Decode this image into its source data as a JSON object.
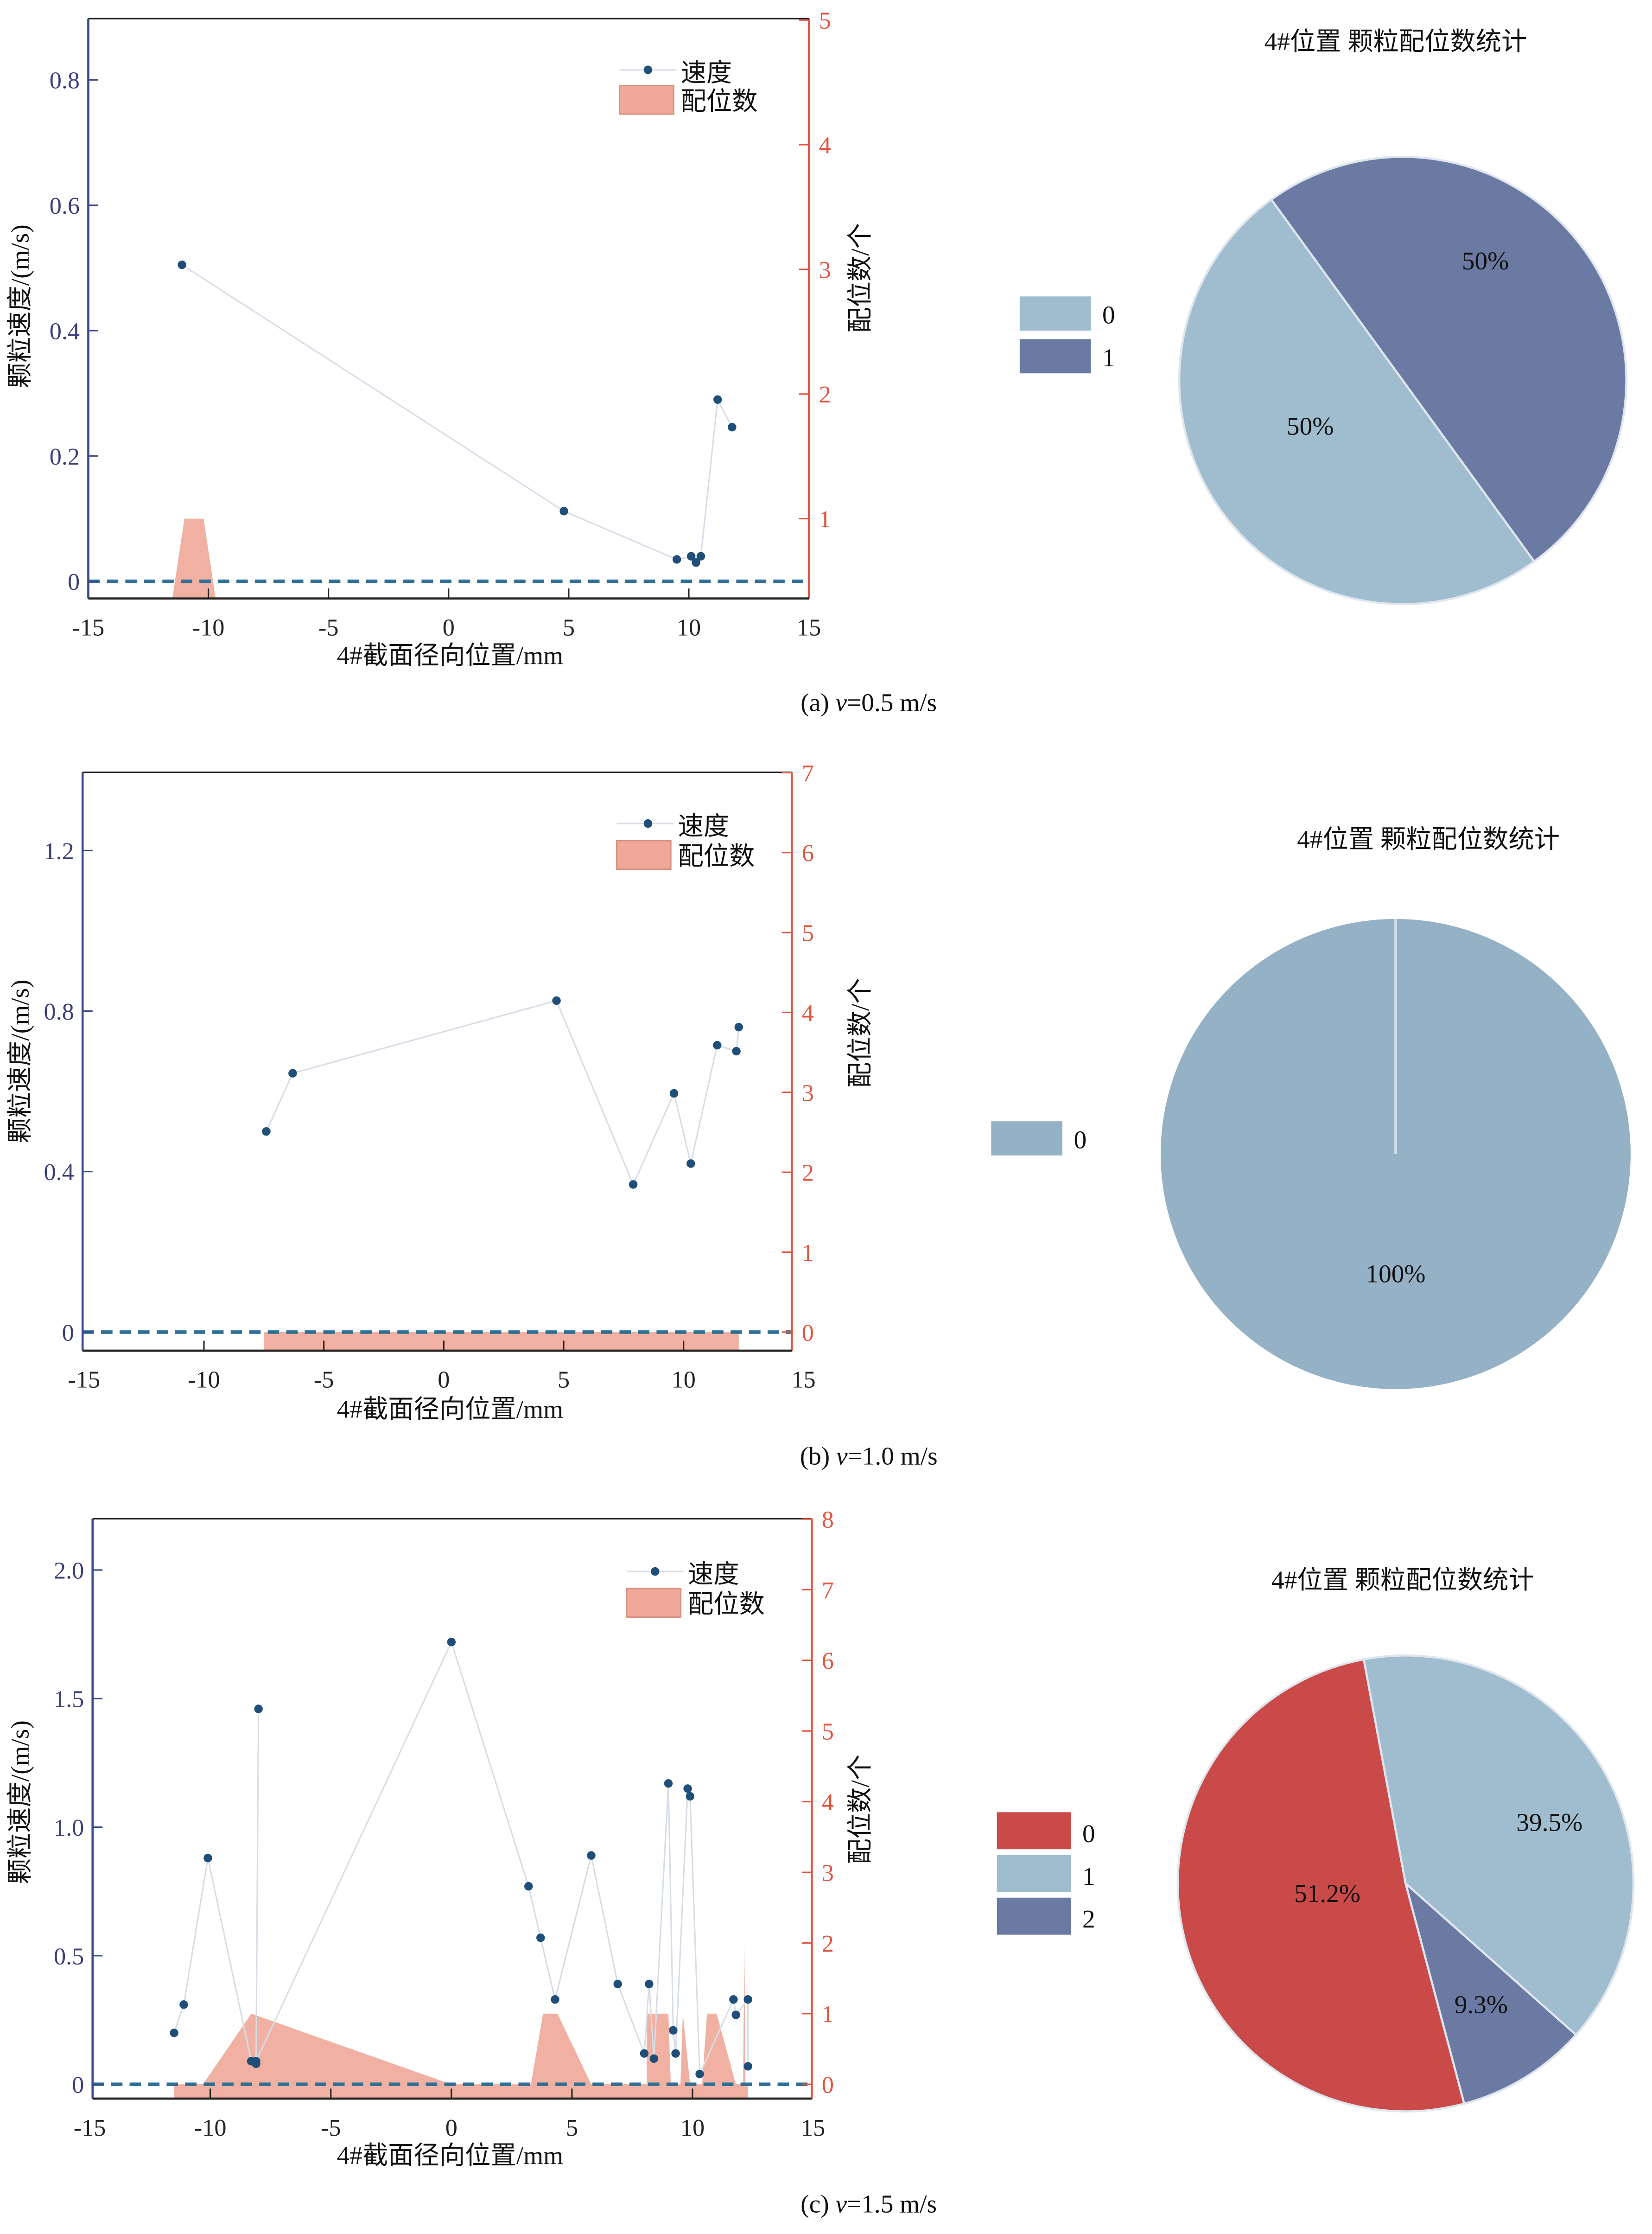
{
  "colors": {
    "left_axis": "#3a4a8a",
    "right_axis": "#e0553f",
    "speed": "#1f4e79",
    "area": "#f0a898",
    "dash": "#2f6f95",
    "pie0_light": "#a0bccf",
    "pie_dark": "#6a7aa3",
    "pie_red": "#c94a48",
    "pie_b": "#94b1c6"
  },
  "chart_data": [
    {
      "type": "line+area",
      "caption": {
        "prefix": "(a) ",
        "var": "v",
        "suffix": "=0.5 m/s"
      },
      "xlabel": "4#截面径向位置/mm",
      "ylabel": "颗粒速度/(m/s)",
      "y2label": "配位数/个",
      "xlim": [
        -15,
        15
      ],
      "xticks": [
        "-15",
        "-10",
        "-5",
        "0",
        "5",
        "10",
        "15"
      ],
      "yticks": [
        "0",
        "0.2",
        "0.4",
        "0.6",
        "0.8"
      ],
      "y2ticks": [
        "1",
        "2",
        "3",
        "4",
        "5"
      ],
      "legend": {
        "speed": "速度",
        "coord": "配位数"
      },
      "speed": [
        [
          -11.1,
          0.505
        ],
        [
          4.8,
          0.112
        ],
        [
          9.5,
          0.035
        ],
        [
          10.1,
          0.04
        ],
        [
          10.3,
          0.03
        ],
        [
          10.5,
          0.04
        ],
        [
          11.2,
          0.29
        ],
        [
          11.8,
          0.246
        ]
      ],
      "coord": [
        [
          -11.5,
          0.35
        ],
        [
          -11.0,
          1
        ],
        [
          -10.2,
          1
        ],
        [
          -9.7,
          0.35
        ]
      ]
    },
    {
      "type": "line+area",
      "caption": {
        "prefix": "(b) ",
        "var": "v",
        "suffix": "=1.0 m/s"
      },
      "xlabel": "4#截面径向位置/mm",
      "ylabel": "颗粒速度/(m/s)",
      "y2label": "配位数/个",
      "xlim": [
        -15,
        15
      ],
      "xticks": [
        "-15",
        "-10",
        "-5",
        "0",
        "5",
        "10",
        "15"
      ],
      "yticks": [
        "0",
        "0.4",
        "0.8",
        "1.2"
      ],
      "y2ticks": [
        "0",
        "1",
        "2",
        "3",
        "4",
        "5",
        "6",
        "7"
      ],
      "legend": {
        "speed": "速度",
        "coord": "配位数"
      },
      "speed": [
        [
          -7.4,
          0.5
        ],
        [
          -6.3,
          0.645
        ],
        [
          4.7,
          0.826
        ],
        [
          7.9,
          0.368
        ],
        [
          9.6,
          0.595
        ],
        [
          10.3,
          0.42
        ],
        [
          11.4,
          0.715
        ],
        [
          12.2,
          0.7
        ],
        [
          12.3,
          0.76
        ]
      ],
      "coord": [
        [
          -7.5,
          0
        ],
        [
          12.3,
          0
        ]
      ]
    },
    {
      "type": "line+area",
      "caption": {
        "prefix": "(c) ",
        "var": "v",
        "suffix": "=1.5 m/s"
      },
      "xlabel": "4#截面径向位置/mm",
      "ylabel": "颗粒速度/(m/s)",
      "y2label": "配位数/个",
      "xlim": [
        -15,
        15
      ],
      "xticks": [
        "-15",
        "-10",
        "-5",
        "0",
        "5",
        "10",
        "15"
      ],
      "yticks": [
        "0",
        "0.5",
        "1.0",
        "1.5",
        "2.0"
      ],
      "y2ticks": [
        "0",
        "1",
        "2",
        "3",
        "4",
        "5",
        "6",
        "7",
        "8"
      ],
      "legend": {
        "speed": "速度",
        "coord": "配位数"
      },
      "speed": [
        [
          -11.5,
          0.2
        ],
        [
          -11.1,
          0.31
        ],
        [
          -10.1,
          0.88
        ],
        [
          -8.3,
          0.09
        ],
        [
          -8.1,
          0.08
        ],
        [
          -8.0,
          1.46
        ],
        [
          -8.1,
          0.09
        ],
        [
          0,
          1.72
        ],
        [
          3.2,
          0.77
        ],
        [
          3.7,
          0.57
        ],
        [
          4.3,
          0.33
        ],
        [
          5.8,
          0.89
        ],
        [
          6.9,
          0.39
        ],
        [
          8.0,
          0.12
        ],
        [
          8.2,
          0.39
        ],
        [
          8.4,
          0.1
        ],
        [
          9.0,
          1.17
        ],
        [
          9.2,
          0.21
        ],
        [
          9.3,
          0.12
        ],
        [
          9.8,
          1.15
        ],
        [
          9.9,
          1.12
        ],
        [
          10.3,
          0.04
        ],
        [
          11.7,
          0.33
        ],
        [
          11.8,
          0.27
        ],
        [
          12.3,
          0.33
        ],
        [
          12.3,
          0.07
        ]
      ],
      "coord": [
        [
          -11.5,
          0
        ],
        [
          -10.3,
          0
        ],
        [
          -8.3,
          1
        ],
        [
          0,
          0
        ],
        [
          3.3,
          0
        ],
        [
          3.8,
          1
        ],
        [
          4.4,
          1
        ],
        [
          5.8,
          0
        ],
        [
          8.1,
          0
        ],
        [
          8.1,
          1
        ],
        [
          9.0,
          1
        ],
        [
          9.1,
          0
        ],
        [
          9.5,
          0
        ],
        [
          9.6,
          1
        ],
        [
          9.9,
          0
        ],
        [
          10.4,
          0
        ],
        [
          10.6,
          1
        ],
        [
          11.0,
          1
        ],
        [
          11.8,
          0
        ],
        [
          12.1,
          0
        ],
        [
          12.15,
          2
        ],
        [
          12.2,
          0
        ],
        [
          12.3,
          0
        ]
      ]
    },
    {
      "type": "pie",
      "title": "4#位置  颗粒配位数统计",
      "labels": [
        "0",
        "1"
      ],
      "values": [
        50,
        50
      ],
      "value_labels": [
        "50%",
        "50%"
      ]
    },
    {
      "type": "pie",
      "title": "4#位置  颗粒配位数统计",
      "labels": [
        "0"
      ],
      "values": [
        100
      ],
      "value_labels": [
        "100%"
      ]
    },
    {
      "type": "pie",
      "title": "4#位置  颗粒配位数统计",
      "labels": [
        "0",
        "1",
        "2"
      ],
      "values": [
        51.2,
        39.5,
        9.3
      ],
      "value_labels": [
        "51.2%",
        "39.5%",
        "9.3%"
      ]
    }
  ]
}
